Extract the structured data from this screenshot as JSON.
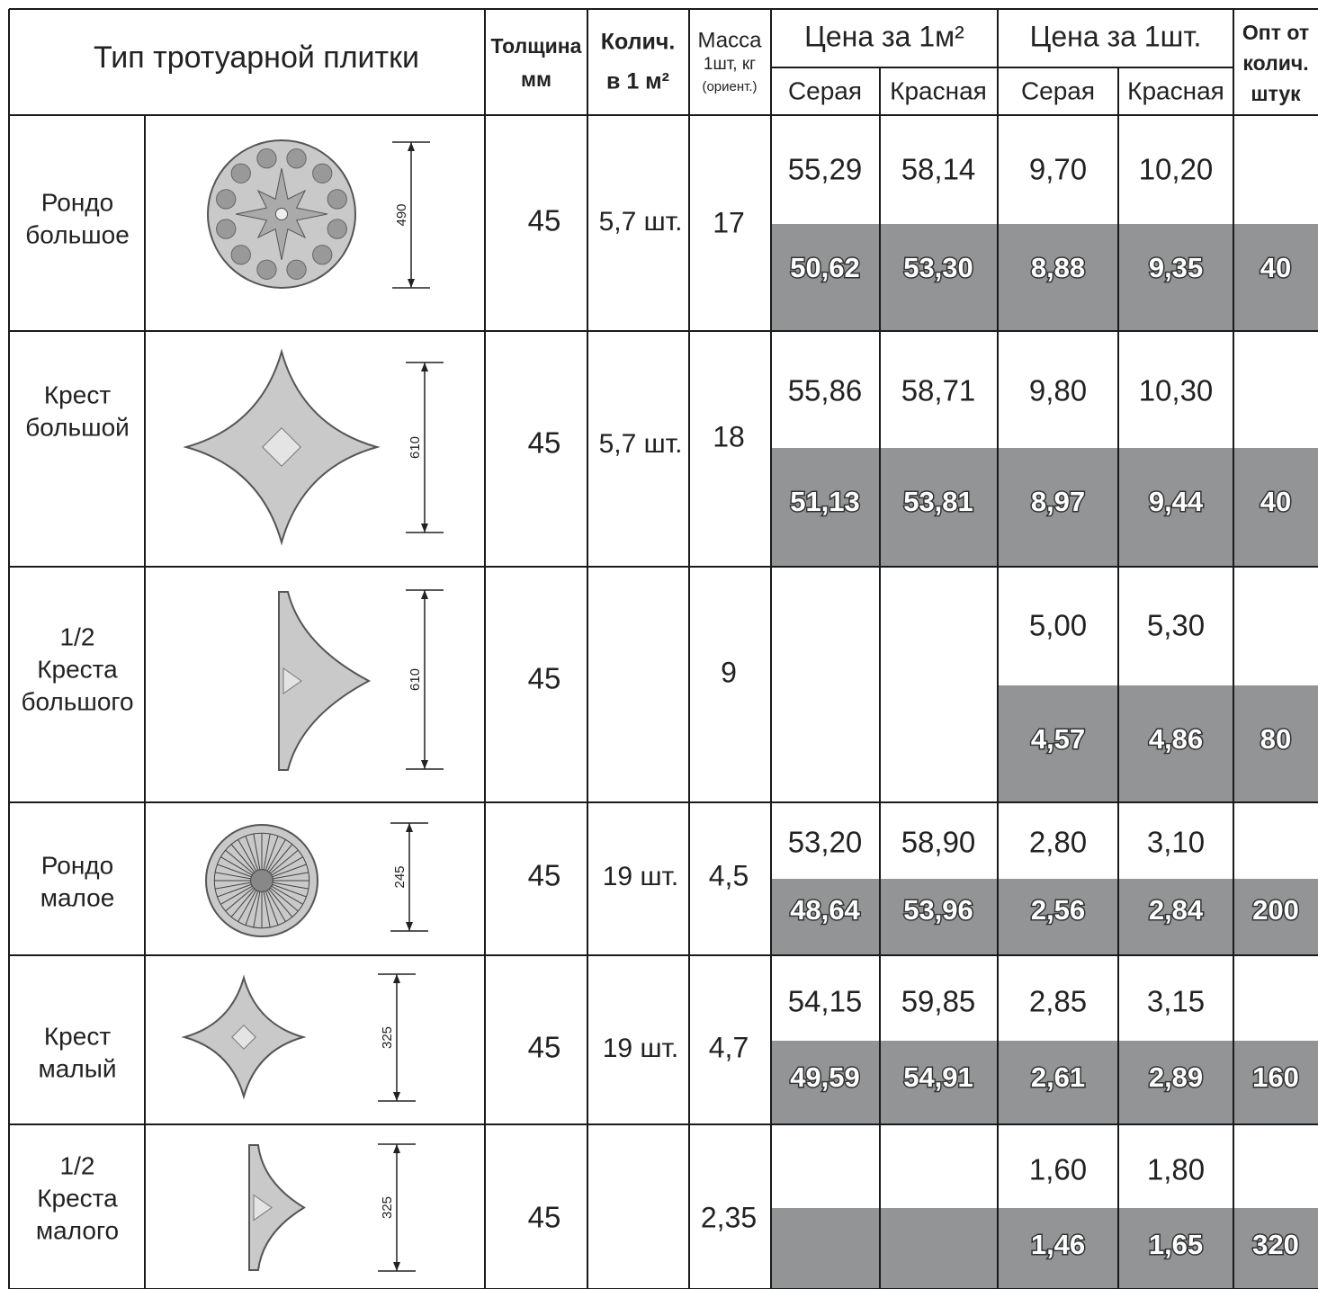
{
  "header": {
    "title": "Тип тротуарной плитки",
    "thickness": [
      "Толщина",
      "мм"
    ],
    "quantity": [
      "Колич.",
      "в 1 м²"
    ],
    "mass": [
      "Масса",
      "1шт, кг",
      "(ориент.)"
    ],
    "price_m2": "Цена за 1м²",
    "price_piece": "Цена за 1шт.",
    "wholesale": [
      "Опт от",
      "колич.",
      "штук"
    ],
    "subheaders": [
      "Серая",
      "Красная",
      "Серая",
      "Красная"
    ]
  },
  "rows": [
    {
      "name": [
        "Рондо",
        "большое"
      ],
      "size": "490",
      "thickness": "45",
      "per_m2": "5,7 шт.",
      "mass": "17",
      "retail": [
        "55,29",
        "58,14",
        "9,70",
        "10,20"
      ],
      "wholesale": [
        "50,62",
        "53,30",
        "8,88",
        "9,35"
      ],
      "min_qty": "40"
    },
    {
      "name": [
        "Крест",
        "большой"
      ],
      "size": "610",
      "thickness": "45",
      "per_m2": "5,7 шт.",
      "mass": "18",
      "retail": [
        "55,86",
        "58,71",
        "9,80",
        "10,30"
      ],
      "wholesale": [
        "51,13",
        "53,81",
        "8,97",
        "9,44"
      ],
      "min_qty": "40"
    },
    {
      "name": [
        "1/2",
        "Креста",
        "большого"
      ],
      "size": "610",
      "thickness": "45",
      "per_m2": null,
      "mass": "9",
      "retail": [
        null,
        null,
        "5,00",
        "5,30"
      ],
      "wholesale": [
        null,
        null,
        "4,57",
        "4,86"
      ],
      "min_qty": "80"
    },
    {
      "name": [
        "Рондо",
        "малое"
      ],
      "size": "245",
      "thickness": "45",
      "per_m2": "19 шт.",
      "mass": "4,5",
      "retail": [
        "53,20",
        "58,90",
        "2,80",
        "3,10"
      ],
      "wholesale": [
        "48,64",
        "53,96",
        "2,56",
        "2,84"
      ],
      "min_qty": "200"
    },
    {
      "name": [
        "Крест",
        "малый"
      ],
      "size": "325",
      "thickness": "45",
      "per_m2": "19 шт.",
      "mass": "4,7",
      "retail": [
        "54,15",
        "59,85",
        "2,85",
        "3,15"
      ],
      "wholesale": [
        "49,59",
        "54,91",
        "2,61",
        "2,89"
      ],
      "min_qty": "160"
    },
    {
      "name": [
        "1/2",
        "Креста",
        "малого"
      ],
      "size": "325",
      "thickness": "45",
      "per_m2": null,
      "mass": "2,35",
      "retail": [
        null,
        null,
        "1,60",
        "1,80"
      ],
      "wholesale": [
        null,
        null,
        "1,46",
        "1,65"
      ],
      "min_qty": "320"
    }
  ]
}
